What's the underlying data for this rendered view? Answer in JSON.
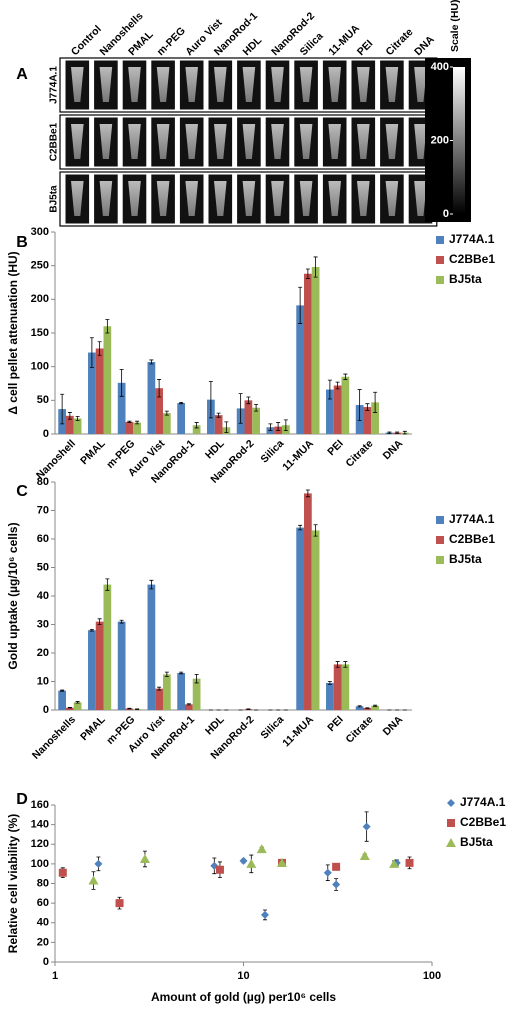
{
  "chart_data": [
    {
      "type": "image-grid",
      "panel": "A",
      "columns": [
        "Control",
        "Nanoshells",
        "PMAL",
        "m-PEG",
        "Auro Vist",
        "NanoRod-1",
        "HDL",
        "NanoRod-2",
        "Silica",
        "11-MUA",
        "PEI",
        "Citrate",
        "DNA"
      ],
      "rows": [
        "J774A.1",
        "C2BBe1",
        "BJ5ta"
      ],
      "scale_title": "Scale (HU)",
      "ylim": [
        0,
        400
      ],
      "yticks": [
        0,
        200,
        400
      ]
    },
    {
      "type": "bar",
      "panel": "B",
      "ylabel": "Δ cell pellet attenuation (HU)",
      "categories": [
        "Nanoshell",
        "PMAL",
        "m-PEG",
        "Auro Vist",
        "NanoRod-1",
        "HDL",
        "NanoRod-2",
        "Silica",
        "11-MUA",
        "PEI",
        "Citrate",
        "DNA"
      ],
      "series": [
        {
          "name": "J774A.1",
          "color": "#4f81bd",
          "values": [
            37,
            121,
            76,
            107,
            46,
            51,
            38,
            10,
            191,
            66,
            43,
            2
          ],
          "errors": [
            22,
            22,
            20,
            3,
            1,
            27,
            22,
            5,
            27,
            14,
            23,
            1
          ]
        },
        {
          "name": "C2BBe1",
          "color": "#c0504d",
          "values": [
            27,
            127,
            18,
            68,
            null,
            28,
            50,
            11,
            238,
            72,
            40,
            2
          ],
          "errors": [
            5,
            10,
            1,
            13,
            null,
            3,
            5,
            6,
            7,
            5,
            5,
            1
          ]
        },
        {
          "name": "BJ5ta",
          "color": "#9bbb59",
          "values": [
            23,
            160,
            17,
            31,
            13,
            10,
            39,
            13,
            248,
            85,
            47,
            2
          ],
          "errors": [
            3,
            10,
            2,
            3,
            4,
            8,
            5,
            8,
            15,
            4,
            15,
            2
          ]
        }
      ],
      "ylim": [
        0,
        300
      ],
      "yticks": [
        0,
        50,
        100,
        150,
        200,
        250,
        300
      ]
    },
    {
      "type": "bar",
      "panel": "C",
      "ylabel": "Gold uptake (µg/10⁶ cells)",
      "categories": [
        "Nanoshells",
        "PMAL",
        "m-PEG",
        "Auro Vist",
        "NanoRod-1",
        "HDL",
        "NanoRod-2",
        "Silica",
        "11-MUA",
        "PEI",
        "Citrate",
        "DNA"
      ],
      "series": [
        {
          "name": "J774A.1",
          "color": "#4f81bd",
          "values": [
            6.8,
            28,
            31,
            44,
            13,
            0,
            0,
            0,
            64,
            9.5,
            1.3,
            0
          ],
          "errors": [
            0.2,
            0.3,
            0.5,
            1.5,
            0.3,
            0,
            0,
            0,
            0.8,
            0.5,
            0.2,
            0
          ]
        },
        {
          "name": "C2BBe1",
          "color": "#c0504d",
          "values": [
            0.8,
            31,
            0.5,
            7.5,
            2,
            0,
            0.3,
            0,
            76,
            16,
            0.7,
            0
          ],
          "errors": [
            0.1,
            1,
            0.1,
            0.5,
            0.2,
            0,
            0.1,
            0,
            1.2,
            1,
            0.1,
            0
          ]
        },
        {
          "name": "BJ5ta",
          "color": "#9bbb59",
          "values": [
            2.7,
            44,
            0.3,
            12.5,
            11,
            0,
            0,
            0,
            63,
            16,
            1.5,
            0
          ],
          "errors": [
            0.3,
            2,
            0.1,
            0.8,
            1.5,
            0,
            0,
            0,
            2,
            1,
            0.2,
            0
          ]
        }
      ],
      "ylim": [
        0,
        80
      ],
      "yticks": [
        0,
        10,
        20,
        30,
        40,
        50,
        60,
        70,
        80
      ]
    },
    {
      "type": "scatter",
      "panel": "D",
      "ylabel": "Relative cell viability (%)",
      "xlabel": "Amount of gold (µg) per10⁶ cells",
      "xscale": "log",
      "series": [
        {
          "name": "J774A.1",
          "color": "#4f81bd",
          "marker": "diamond",
          "x": [
            1.7,
            7,
            10,
            13,
            28,
            31,
            45,
            65
          ],
          "values": [
            100,
            98,
            103,
            48,
            91,
            79,
            138,
            101
          ],
          "errors": [
            7,
            8,
            2,
            5,
            8,
            6,
            15,
            3
          ]
        },
        {
          "name": "C2BBe1",
          "color": "#c0504d",
          "marker": "square",
          "x": [
            1.1,
            2.2,
            7.5,
            16,
            31,
            76
          ],
          "values": [
            91,
            60,
            94,
            101,
            97,
            101
          ],
          "errors": [
            5,
            6,
            8,
            3,
            3,
            6
          ]
        },
        {
          "name": "BJ5ta",
          "color": "#9bbb59",
          "marker": "triangle",
          "x": [
            1.6,
            3,
            11,
            12.5,
            16,
            44,
            63
          ],
          "values": [
            83,
            105,
            100,
            115,
            101,
            108,
            100
          ],
          "errors": [
            9,
            8,
            9,
            2,
            2,
            2,
            3
          ]
        }
      ],
      "xlim": [
        1,
        100
      ],
      "xticks": [
        1,
        10,
        100
      ],
      "ylim": [
        0,
        160
      ],
      "yticks": [
        0,
        20,
        40,
        60,
        80,
        100,
        120,
        140,
        160
      ]
    }
  ]
}
